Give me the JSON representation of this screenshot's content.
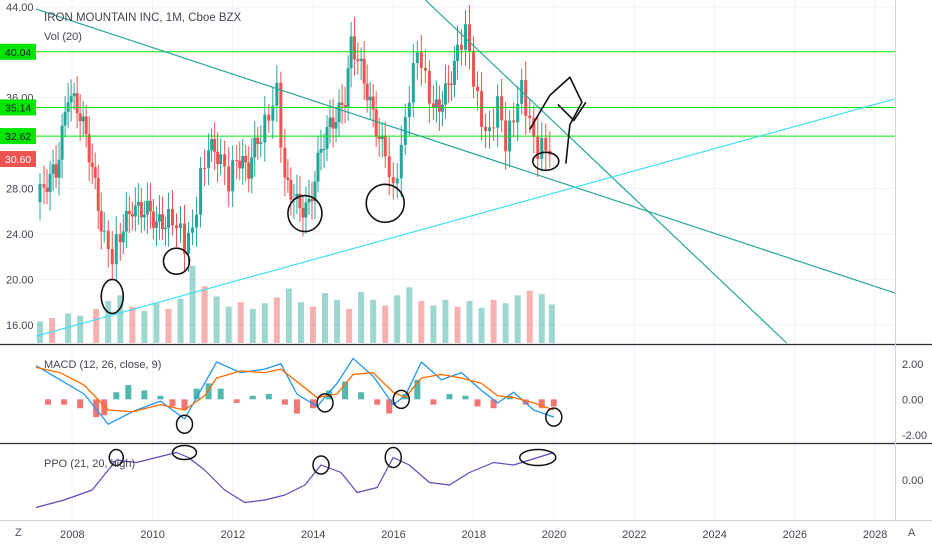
{
  "chart_data": {
    "type": "line",
    "title": "IRON MOUNTAIN INC, 1M, Cboe BZX",
    "volume_label": "Vol (20)",
    "x_ticks": [
      "2008",
      "2010",
      "2012",
      "2014",
      "2016",
      "2018",
      "2020",
      "2022",
      "2024",
      "2026",
      "2028"
    ],
    "x_range": [
      2007.1,
      2028.5
    ],
    "price_panel": {
      "y_ticks": [
        "16.00",
        "20.00",
        "24.00",
        "28.00",
        "36.00",
        "44.00"
      ],
      "y_range": [
        14.4,
        44.6
      ],
      "horizontal_levels": [
        40.04,
        35.14,
        32.62
      ],
      "price_tags": [
        {
          "label": "40.04",
          "value": 40.04,
          "color": "#00e600"
        },
        {
          "label": "35.14",
          "value": 35.14,
          "color": "#00e600"
        },
        {
          "label": "32.62",
          "value": 32.62,
          "color": "#00e600"
        },
        {
          "label": "30.60",
          "value": 30.6,
          "color": "#ef5350"
        }
      ],
      "close_series": [
        [
          2007.1,
          28
        ],
        [
          2007.3,
          27.5
        ],
        [
          2007.6,
          29.5
        ],
        [
          2007.9,
          37
        ],
        [
          2008.2,
          34
        ],
        [
          2008.5,
          30
        ],
        [
          2008.8,
          24
        ],
        [
          2009.0,
          21.5
        ],
        [
          2009.2,
          23.5
        ],
        [
          2009.5,
          27
        ],
        [
          2009.8,
          26
        ],
        [
          2010.1,
          24.5
        ],
        [
          2010.4,
          26
        ],
        [
          2010.6,
          25
        ],
        [
          2010.8,
          22.5
        ],
        [
          2011.0,
          24
        ],
        [
          2011.2,
          29.5
        ],
        [
          2011.4,
          32
        ],
        [
          2011.7,
          30
        ],
        [
          2011.9,
          28.5
        ],
        [
          2012.1,
          31.5
        ],
        [
          2012.4,
          29.5
        ],
        [
          2012.7,
          32.5
        ],
        [
          2012.9,
          35
        ],
        [
          2013.1,
          37
        ],
        [
          2013.3,
          28
        ],
        [
          2013.6,
          26.5
        ],
        [
          2013.9,
          27
        ],
        [
          2014.2,
          31
        ],
        [
          2014.5,
          34
        ],
        [
          2014.8,
          36.5
        ],
        [
          2014.95,
          40.5
        ],
        [
          2015.2,
          38
        ],
        [
          2015.5,
          35
        ],
        [
          2015.8,
          31
        ],
        [
          2016.0,
          27
        ],
        [
          2016.2,
          31.5
        ],
        [
          2016.4,
          37
        ],
        [
          2016.6,
          40.5
        ],
        [
          2016.8,
          37
        ],
        [
          2017.0,
          34.5
        ],
        [
          2017.3,
          37
        ],
        [
          2017.6,
          39.5
        ],
        [
          2017.8,
          41.5
        ],
        [
          2018.0,
          38
        ],
        [
          2018.2,
          34.5
        ],
        [
          2018.4,
          32.5
        ],
        [
          2018.6,
          35
        ],
        [
          2018.8,
          32
        ],
        [
          2019.0,
          35
        ],
        [
          2019.2,
          37
        ],
        [
          2019.4,
          33
        ],
        [
          2019.6,
          31
        ],
        [
          2019.8,
          32.5
        ],
        [
          2020.0,
          30.6
        ]
      ],
      "volume_bars": [
        [
          2007.2,
          16.3
        ],
        [
          2007.5,
          16.6
        ],
        [
          2007.9,
          17.0
        ],
        [
          2008.2,
          16.8
        ],
        [
          2008.6,
          17.4
        ],
        [
          2008.9,
          18.1
        ],
        [
          2009.2,
          18.6
        ],
        [
          2009.5,
          17.6
        ],
        [
          2009.8,
          17.2
        ],
        [
          2010.1,
          17.9
        ],
        [
          2010.4,
          17.4
        ],
        [
          2010.7,
          18.3
        ],
        [
          2011.0,
          21.2
        ],
        [
          2011.3,
          19.4
        ],
        [
          2011.6,
          18.5
        ],
        [
          2011.9,
          17.6
        ],
        [
          2012.2,
          18.0
        ],
        [
          2012.5,
          17.4
        ],
        [
          2012.8,
          17.9
        ],
        [
          2013.1,
          18.4
        ],
        [
          2013.4,
          19.2
        ],
        [
          2013.7,
          18.0
        ],
        [
          2014.0,
          17.6
        ],
        [
          2014.3,
          18.8
        ],
        [
          2014.6,
          18.2
        ],
        [
          2014.9,
          17.4
        ],
        [
          2015.2,
          18.9
        ],
        [
          2015.5,
          18.2
        ],
        [
          2015.8,
          17.7
        ],
        [
          2016.1,
          18.6
        ],
        [
          2016.4,
          19.3
        ],
        [
          2016.7,
          18.1
        ],
        [
          2017.0,
          17.7
        ],
        [
          2017.3,
          18.2
        ],
        [
          2017.6,
          17.6
        ],
        [
          2017.9,
          18.1
        ],
        [
          2018.2,
          17.5
        ],
        [
          2018.5,
          18.2
        ],
        [
          2018.8,
          17.9
        ],
        [
          2019.1,
          18.6
        ],
        [
          2019.4,
          19.0
        ],
        [
          2019.7,
          18.7
        ],
        [
          2019.95,
          17.8
        ]
      ],
      "trendlines": [
        {
          "name": "descending",
          "color": "#26a69a",
          "from": [
            2007.1,
            43.8
          ],
          "to": [
            2028.5,
            18.8
          ]
        },
        {
          "name": "steep",
          "color": "#26a69a",
          "from": [
            2016.8,
            44.6
          ],
          "to": [
            2025.8,
            14.4
          ]
        },
        {
          "name": "ascending",
          "color": "#40e0f0",
          "from": [
            2007.1,
            15.0
          ],
          "to": [
            2028.5,
            35.9
          ]
        }
      ]
    },
    "macd_panel": {
      "label": "MACD (12, 26, close, 9)",
      "y_ticks": [
        "2.00",
        "0.00",
        "-2.00"
      ],
      "y_range": [
        -2.4,
        3.0
      ],
      "macd_line": [
        [
          2007.1,
          1.9
        ],
        [
          2007.7,
          1.1
        ],
        [
          2008.3,
          0.3
        ],
        [
          2008.9,
          -1.4
        ],
        [
          2009.5,
          -0.7
        ],
        [
          2010.2,
          -0.1
        ],
        [
          2010.8,
          -1.1
        ],
        [
          2011.3,
          0.9
        ],
        [
          2011.6,
          2.1
        ],
        [
          2012.2,
          1.5
        ],
        [
          2012.8,
          1.7
        ],
        [
          2013.2,
          2.0
        ],
        [
          2013.6,
          0.3
        ],
        [
          2014.1,
          -0.4
        ],
        [
          2014.6,
          0.9
        ],
        [
          2015.0,
          2.3
        ],
        [
          2015.5,
          1.3
        ],
        [
          2016.0,
          -0.3
        ],
        [
          2016.3,
          0.2
        ],
        [
          2016.7,
          2.1
        ],
        [
          2017.2,
          1.1
        ],
        [
          2017.7,
          1.5
        ],
        [
          2018.2,
          0.5
        ],
        [
          2018.6,
          -0.2
        ],
        [
          2019.0,
          0.4
        ],
        [
          2019.5,
          -0.6
        ],
        [
          2020.0,
          -1.0
        ]
      ],
      "signal_line": [
        [
          2007.1,
          1.8
        ],
        [
          2007.7,
          1.5
        ],
        [
          2008.3,
          0.8
        ],
        [
          2008.9,
          -0.6
        ],
        [
          2009.5,
          -0.7
        ],
        [
          2010.2,
          -0.3
        ],
        [
          2010.8,
          -0.6
        ],
        [
          2011.3,
          0.2
        ],
        [
          2011.6,
          1.2
        ],
        [
          2012.2,
          1.6
        ],
        [
          2012.8,
          1.5
        ],
        [
          2013.2,
          1.7
        ],
        [
          2013.6,
          1.0
        ],
        [
          2014.1,
          0.1
        ],
        [
          2014.6,
          0.3
        ],
        [
          2015.0,
          1.4
        ],
        [
          2015.5,
          1.5
        ],
        [
          2016.0,
          0.4
        ],
        [
          2016.3,
          0.1
        ],
        [
          2016.7,
          1.2
        ],
        [
          2017.2,
          1.4
        ],
        [
          2017.7,
          1.2
        ],
        [
          2018.2,
          0.9
        ],
        [
          2018.6,
          0.2
        ],
        [
          2019.0,
          0.1
        ],
        [
          2019.5,
          -0.2
        ],
        [
          2020.0,
          -0.6
        ]
      ],
      "histogram": [
        [
          2007.4,
          -0.3
        ],
        [
          2007.8,
          -0.3
        ],
        [
          2008.2,
          -0.5
        ],
        [
          2008.6,
          -1.0
        ],
        [
          2008.8,
          -0.9
        ],
        [
          2009.1,
          0.4
        ],
        [
          2009.4,
          0.8
        ],
        [
          2009.8,
          0.5
        ],
        [
          2010.2,
          0.2
        ],
        [
          2010.5,
          -0.4
        ],
        [
          2010.8,
          -0.6
        ],
        [
          2011.1,
          0.6
        ],
        [
          2011.4,
          0.9
        ],
        [
          2011.7,
          0.6
        ],
        [
          2012.1,
          -0.2
        ],
        [
          2012.5,
          0.2
        ],
        [
          2012.9,
          0.3
        ],
        [
          2013.3,
          -0.3
        ],
        [
          2013.6,
          -0.8
        ],
        [
          2014.0,
          -0.5
        ],
        [
          2014.4,
          0.5
        ],
        [
          2014.8,
          1.0
        ],
        [
          2015.2,
          0.4
        ],
        [
          2015.6,
          -0.3
        ],
        [
          2015.9,
          -0.8
        ],
        [
          2016.3,
          0.3
        ],
        [
          2016.6,
          1.1
        ],
        [
          2017.0,
          -0.3
        ],
        [
          2017.4,
          0.3
        ],
        [
          2017.8,
          0.2
        ],
        [
          2018.1,
          -0.4
        ],
        [
          2018.5,
          -0.5
        ],
        [
          2018.9,
          0.2
        ],
        [
          2019.3,
          -0.3
        ],
        [
          2019.7,
          -0.5
        ],
        [
          2020.0,
          -0.4
        ]
      ]
    },
    "ppo_panel": {
      "label": "PPO (21, 20, high)",
      "y_ticks": [
        "0.00"
      ],
      "y_range": [
        -1.6,
        1.4
      ],
      "ppo_line": [
        [
          2007.1,
          -1.1
        ],
        [
          2007.8,
          -0.8
        ],
        [
          2008.5,
          -0.4
        ],
        [
          2009.1,
          0.8
        ],
        [
          2009.6,
          0.7
        ],
        [
          2010.1,
          0.9
        ],
        [
          2010.6,
          1.1
        ],
        [
          2010.9,
          0.9
        ],
        [
          2011.3,
          0.4
        ],
        [
          2011.8,
          -0.4
        ],
        [
          2012.3,
          -0.9
        ],
        [
          2012.8,
          -0.8
        ],
        [
          2013.3,
          -0.6
        ],
        [
          2013.8,
          -0.2
        ],
        [
          2014.2,
          0.6
        ],
        [
          2014.7,
          0.3
        ],
        [
          2015.1,
          -0.5
        ],
        [
          2015.6,
          -0.3
        ],
        [
          2016.0,
          0.9
        ],
        [
          2016.4,
          0.6
        ],
        [
          2016.9,
          -0.1
        ],
        [
          2017.4,
          -0.2
        ],
        [
          2017.9,
          0.3
        ],
        [
          2018.5,
          0.7
        ],
        [
          2019.0,
          0.6
        ],
        [
          2019.6,
          0.9
        ],
        [
          2020.0,
          1.1
        ]
      ]
    }
  },
  "ui": {
    "left_bottom_button": "Z",
    "right_bottom_button": "A"
  },
  "colors": {
    "up": "#26a69a",
    "down": "#ef5350",
    "level_line": "#00e600",
    "macd_line": "#2196f3",
    "signal_line": "#ff6d00",
    "ppo_line": "#5b4bbd",
    "annotation": "#111111"
  }
}
